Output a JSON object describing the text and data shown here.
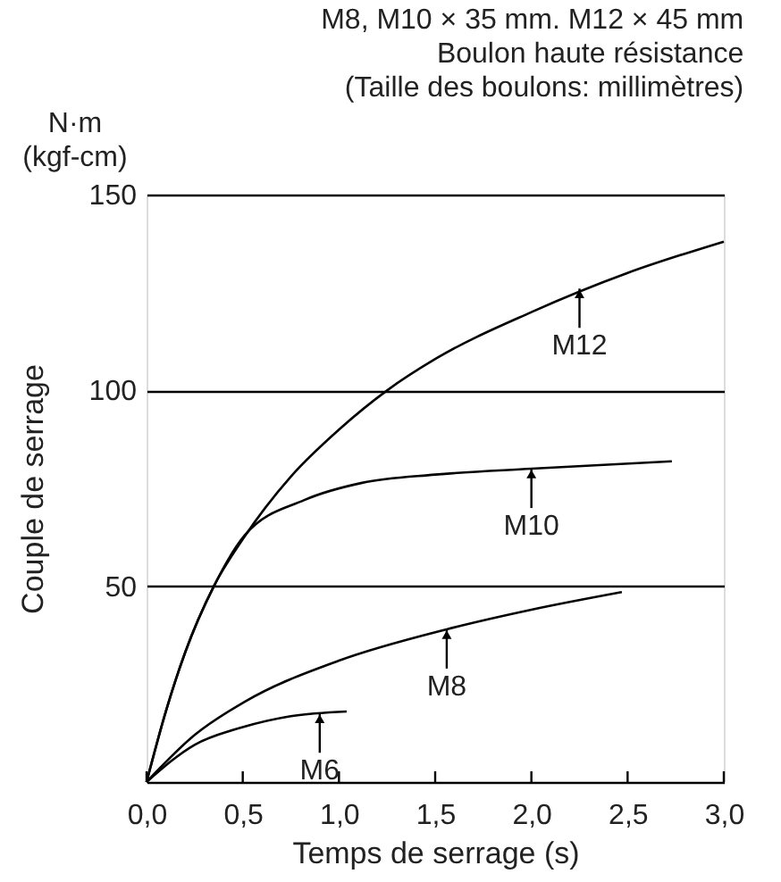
{
  "chart_data": {
    "type": "line",
    "title": "M8, M10 × 35 mm. M12 × 45 mm",
    "subtitle": "Boulon haute résistance\n(Taille des boulons: millimètres)",
    "xlabel": "Temps de serrage (s)",
    "ylabel": "Couple de serrage",
    "annotations": [
      "N·m\n(kgf-cm)",
      {
        "text": "M12",
        "x": 2.25,
        "y": 126
      },
      {
        "text": "M10",
        "x": 2.0,
        "y": 80
      },
      {
        "text": "M8",
        "x": 1.56,
        "y": 39
      },
      {
        "text": "M6",
        "x": 0.9,
        "y": 17.5
      }
    ],
    "xlim": [
      0,
      3
    ],
    "ylim": [
      0,
      150
    ],
    "xticks": [
      {
        "value": 0,
        "label": "0,0"
      },
      {
        "value": 0.5,
        "label": "0,5"
      },
      {
        "value": 1,
        "label": "1,0"
      },
      {
        "value": 1.5,
        "label": "1,5"
      },
      {
        "value": 2,
        "label": "2,0"
      },
      {
        "value": 2.5,
        "label": "2,5"
      },
      {
        "value": 3,
        "label": "3,0"
      }
    ],
    "yticks": [
      {
        "value": 0,
        "label": null
      },
      50,
      100,
      150
    ],
    "grid": "y",
    "legend": false,
    "marker": "none",
    "line_style": "solid",
    "series": [
      {
        "name": null,
        "color": "#000000",
        "x": [
          0,
          0.1,
          0.2,
          0.35,
          0.5,
          0.75,
          1.0,
          1.25,
          1.5,
          2.0,
          2.5,
          3.0
        ],
        "values": [
          0,
          18,
          33,
          50,
          62,
          78,
          90,
          100,
          108,
          120,
          130,
          138
        ]
      },
      {
        "name": null,
        "color": "#000000",
        "x": [
          0,
          0.1,
          0.2,
          0.35,
          0.51,
          0.82,
          1.12,
          1.5,
          2.0,
          2.73
        ],
        "values": [
          0,
          18,
          33,
          50,
          63,
          72,
          76.4,
          78.5,
          80,
          81.9
        ]
      },
      {
        "name": null,
        "color": "#000000",
        "x": [
          0,
          0.25,
          0.51,
          1.0,
          1.56,
          2.0,
          2.47
        ],
        "values": [
          0,
          12,
          20.5,
          31,
          39,
          44,
          48.5
        ]
      },
      {
        "name": null,
        "color": "#000000",
        "x": [
          0,
          0.25,
          0.5,
          0.75,
          1.04
        ],
        "values": [
          0,
          9.5,
          14,
          16.8,
          18
        ]
      }
    ]
  }
}
